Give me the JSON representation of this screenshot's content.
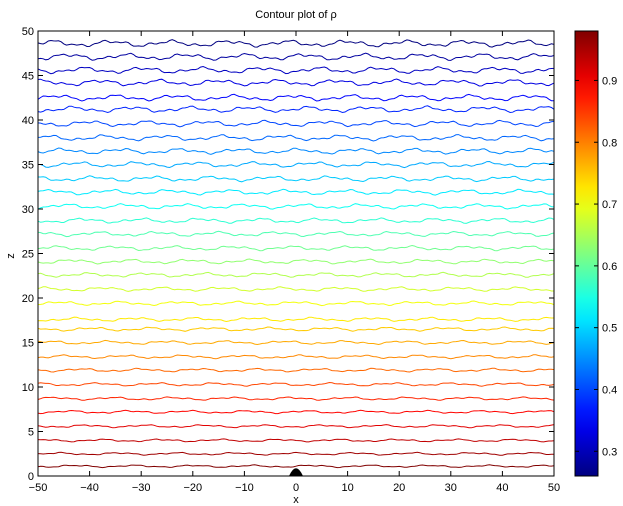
{
  "chart_data": [
    {
      "type": "contour",
      "title": "Contour plot of ρ",
      "xlabel": "x",
      "ylabel": "z",
      "xlim": [
        -50,
        50
      ],
      "ylim": [
        0,
        50
      ],
      "xticks": [
        -50,
        -40,
        -30,
        -20,
        -10,
        0,
        10,
        20,
        30,
        40,
        50
      ],
      "yticks": [
        0,
        5,
        10,
        15,
        20,
        25,
        30,
        35,
        40,
        45,
        50
      ],
      "xtick_labels": [
        "−50",
        "−40",
        "−30",
        "−20",
        "−10",
        "0",
        "10",
        "20",
        "30",
        "40",
        "50"
      ],
      "ytick_labels": [
        "0",
        "5",
        "10",
        "15",
        "20",
        "25",
        "30",
        "35",
        "40",
        "45",
        "50"
      ],
      "colormap": "jet",
      "grid": false,
      "contour_levels_z": [
        1.1,
        2.5,
        4.0,
        5.6,
        7.2,
        8.7,
        10.3,
        11.9,
        13.4,
        15.0,
        16.5,
        17.6,
        19.4,
        21.0,
        22.6,
        24.1,
        25.6,
        27.2,
        28.7,
        30.3,
        31.9,
        33.4,
        35.0,
        36.5,
        38.0,
        39.6,
        41.2,
        42.5,
        44.2,
        45.6,
        47.1,
        48.6
      ],
      "features": [
        {
          "kind": "bump",
          "x": 0,
          "z": 0.4
        }
      ]
    },
    {
      "type": "colorbar",
      "range": [
        0.26,
        0.98
      ],
      "ticks": [
        0.3,
        0.4,
        0.5,
        0.6,
        0.7,
        0.8,
        0.9
      ],
      "tick_labels": [
        "0.3",
        "0.4",
        "0.5",
        "0.6",
        "0.7",
        "0.8",
        "0.9"
      ],
      "colormap": "jet"
    }
  ]
}
